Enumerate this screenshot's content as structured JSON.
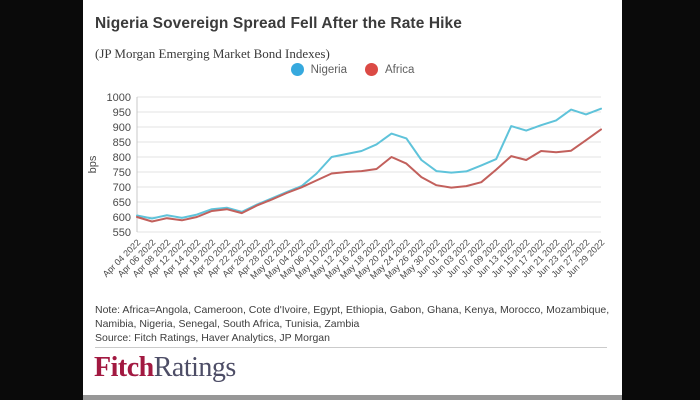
{
  "header": {
    "title": "Nigeria Sovereign Spread Fell After the Rate Hike",
    "subtitle": "(JP Morgan Emerging Market Bond Indexes)"
  },
  "legend": [
    {
      "label": "Nigeria",
      "color": "#36A9DE"
    },
    {
      "label": "Africa",
      "color": "#DB4A45"
    }
  ],
  "chart_data": {
    "type": "line",
    "title": "Nigeria Sovereign Spread Fell After the Rate Hike",
    "subtitle": "(JP Morgan Emerging Market Bond Indexes)",
    "xlabel": "",
    "ylabel": "bps",
    "ylim": [
      550,
      1000
    ],
    "ytick_step": 50,
    "grid": true,
    "legend_position": "top-center",
    "grid_color": "#e3e3e3",
    "axis_text_color": "#4a4a4a",
    "x": [
      "Apr 04 2022",
      "Apr 06 2022",
      "Apr 08 2022",
      "Apr 12 2022",
      "Apr 14 2022",
      "Apr 18 2022",
      "Apr 20 2022",
      "Apr 22 2022",
      "Apr 26 2022",
      "Apr 28 2022",
      "May 02 2022",
      "May 04 2022",
      "May 06 2022",
      "May 10 2022",
      "May 12 2022",
      "May 16 2022",
      "May 18 2022",
      "May 20 2022",
      "May 24 2022",
      "May 26 2022",
      "May 30 2022",
      "Jun 01 2022",
      "Jun 03 2022",
      "Jun 07 2022",
      "Jun 09 2022",
      "Jun 13 2022",
      "Jun 15 2022",
      "Jun 17 2022",
      "Jun 21 2022",
      "Jun 23 2022",
      "Jun 27 2022",
      "Jun 29 2022"
    ],
    "series": [
      {
        "name": "Nigeria",
        "color": "#5FC3DA",
        "values": [
          605,
          595,
          606,
          597,
          608,
          626,
          631,
          617,
          641,
          662,
          683,
          703,
          745,
          800,
          810,
          820,
          842,
          878,
          862,
          790,
          753,
          748,
          752,
          772,
          793,
          903,
          888,
          906,
          922,
          958,
          942,
          961
        ]
      },
      {
        "name": "Africa",
        "color": "#C2605C",
        "values": [
          600,
          585,
          596,
          589,
          600,
          620,
          626,
          613,
          638,
          658,
          680,
          699,
          722,
          745,
          750,
          753,
          760,
          800,
          778,
          733,
          706,
          698,
          703,
          716,
          758,
          803,
          790,
          820,
          816,
          821,
          856,
          892
        ]
      }
    ]
  },
  "footnote": {
    "note": "Note: Africa=Angola, Cameroon, Cote d'Ivoire, Egypt, Ethiopia, Gabon, Ghana, Kenya, Morocco, Mozambique, Namibia, Nigeria, Senegal, South Africa, Tunisia, Zambia",
    "source": "Source: Fitch Ratings, Haver Analytics, JP Morgan"
  },
  "logo": {
    "part1": "Fitch",
    "part2": "Ratings",
    "color1": "#A21941",
    "color2": "#4D4D66"
  }
}
